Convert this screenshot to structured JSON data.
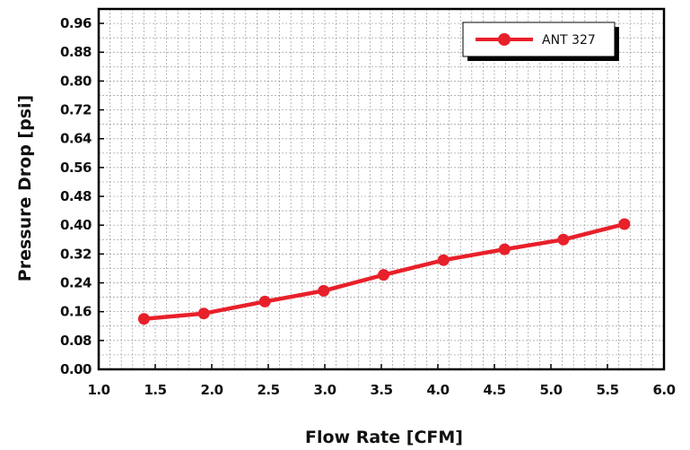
{
  "chart_data": {
    "type": "line",
    "xlabel": "Flow Rate [CFM]",
    "ylabel": "Pressure Drop [psi]",
    "xlim": [
      1.0,
      6.0
    ],
    "ylim": [
      0.0,
      1.0
    ],
    "xticks": [
      "1.0",
      "1.5",
      "2.0",
      "2.5",
      "3.0",
      "3.5",
      "4.0",
      "4.5",
      "5.0",
      "5.5",
      "6.0"
    ],
    "yticks": [
      "0.00",
      "0.08",
      "0.16",
      "0.24",
      "0.32",
      "0.40",
      "0.48",
      "0.56",
      "0.64",
      "0.72",
      "0.80",
      "0.88",
      "0.96"
    ],
    "grid": true,
    "legend_position": "top-right",
    "series": [
      {
        "name": "ANT 327",
        "color": "#e8202a",
        "x": [
          1.4,
          1.93,
          2.47,
          2.99,
          3.52,
          4.05,
          4.59,
          5.11,
          5.65
        ],
        "y": [
          0.14,
          0.155,
          0.188,
          0.218,
          0.262,
          0.303,
          0.333,
          0.36,
          0.403
        ]
      }
    ]
  }
}
